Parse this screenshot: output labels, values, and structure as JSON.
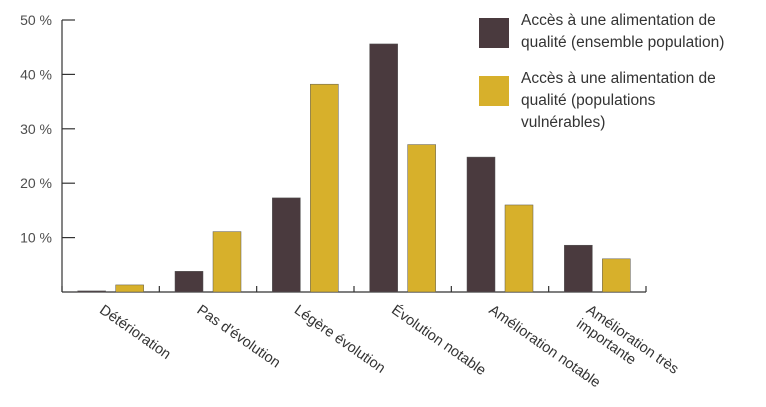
{
  "chart_data": {
    "type": "bar",
    "title": "",
    "xlabel": "",
    "ylabel": "",
    "ylim": [
      0,
      50
    ],
    "yticks": [
      "10 %",
      "20 %",
      "30 %",
      "40 %",
      "50 %"
    ],
    "ytick_values": [
      10,
      20,
      30,
      40,
      50
    ],
    "categories": [
      [
        "Détérioration"
      ],
      [
        "Pas d'évolution"
      ],
      [
        "Légère évolution"
      ],
      [
        "Évolution notable"
      ],
      [
        "Amélioration notable"
      ],
      [
        "Amélioration très",
        "importante"
      ]
    ],
    "series": [
      {
        "name_lines": [
          "Accès à une alimentation de",
          "qualité (ensemble population)"
        ],
        "color": "#4a3a3e",
        "values": [
          0.2,
          3.8,
          17.3,
          45.6,
          24.8,
          8.6
        ]
      },
      {
        "name_lines": [
          "Accès à une alimentation de",
          "qualité (populations",
          "vulnérables)"
        ],
        "color": "#d7b02b",
        "values": [
          1.3,
          11.1,
          38.2,
          27.1,
          16.0,
          6.1
        ]
      }
    ],
    "grid": false,
    "legend_position": "top-right"
  }
}
